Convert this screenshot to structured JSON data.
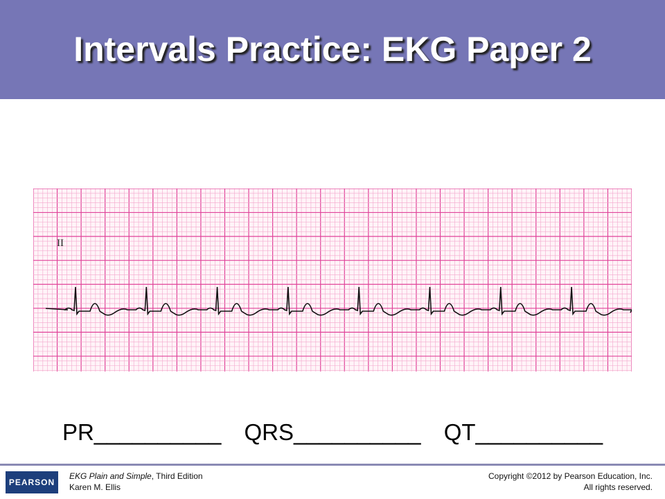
{
  "header": {
    "title": "Intervals Practice: EKG Paper 2"
  },
  "strip": {
    "lead": "II"
  },
  "fields": [
    "PR__________",
    "QRS__________",
    "QT__________"
  ],
  "footer": {
    "logo": "PEARSON",
    "book": "EKG Plain and Simple",
    "edition": ", Third Edition",
    "author": "Karen M. Ellis",
    "copyright": "Copyright ©2012 by Pearson Education, Inc.",
    "rights": "All rights reserved."
  }
}
